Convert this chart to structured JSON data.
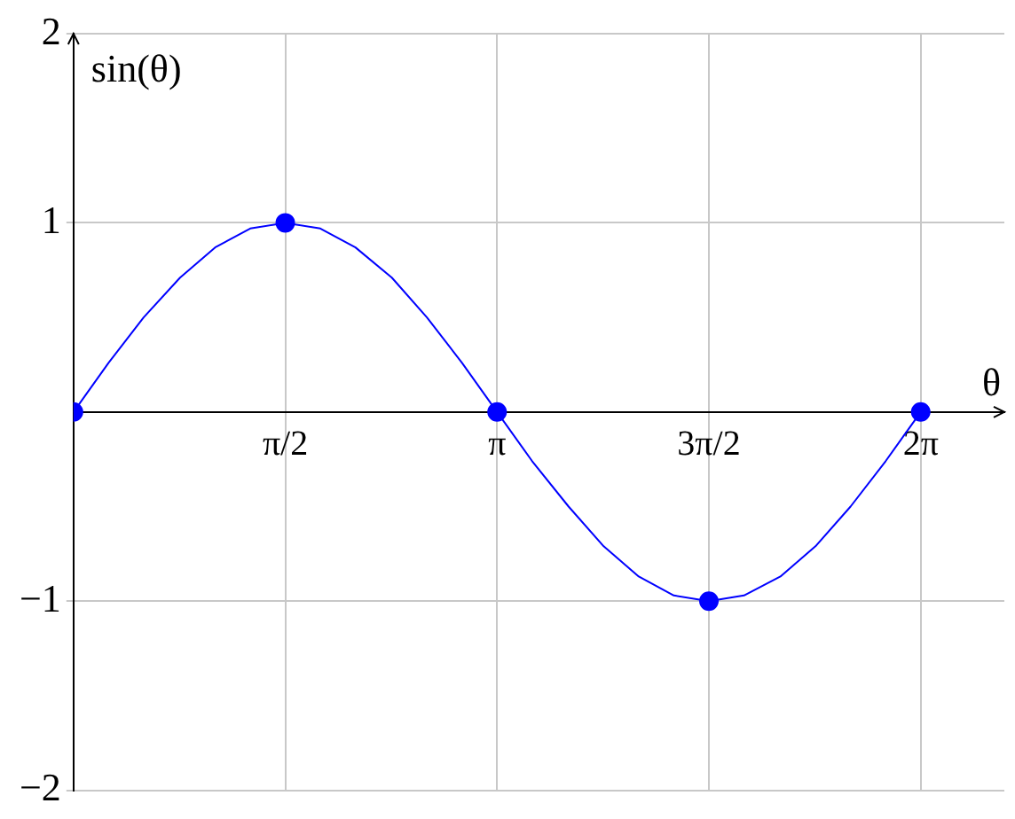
{
  "chart_data": {
    "type": "line",
    "xlabel": "θ",
    "ylabel": "sin(θ)",
    "series": [
      {
        "type": "line",
        "color": "#0000ff",
        "marker": "none",
        "x": [
          0,
          0.26,
          0.52,
          0.79,
          1.05,
          1.31,
          1.57,
          1.83,
          2.09,
          2.36,
          2.62,
          2.88,
          3.14,
          3.4,
          3.67,
          3.93,
          4.19,
          4.45,
          4.71,
          4.97,
          5.24,
          5.5,
          5.76,
          6.02,
          6.28
        ],
        "values": [
          0,
          0.26,
          0.5,
          0.71,
          0.87,
          0.97,
          1,
          0.97,
          0.87,
          0.71,
          0.5,
          0.26,
          0,
          -0.26,
          -0.5,
          -0.71,
          -0.87,
          -0.97,
          -1,
          -0.97,
          -0.87,
          -0.71,
          -0.5,
          -0.26,
          0
        ]
      },
      {
        "type": "scatter",
        "color": "#0000ff",
        "marker": "circle",
        "x": [
          0,
          1.57,
          3.14,
          4.71,
          6.28
        ],
        "values": [
          0,
          1,
          0,
          -1,
          0
        ]
      }
    ],
    "xlim": [
      0,
      6.9
    ],
    "ylim": [
      -2,
      2
    ],
    "xticks": [
      {
        "value": 1.57,
        "label": "π/2"
      },
      {
        "value": 3.14,
        "label": "π"
      },
      {
        "value": 4.71,
        "label": "3π/2"
      },
      {
        "value": 6.28,
        "label": "2π"
      }
    ],
    "yticks": [
      {
        "value": -2,
        "label": "−2"
      },
      {
        "value": -1,
        "label": "−1"
      },
      1,
      2
    ],
    "grid": true,
    "legend": false
  }
}
